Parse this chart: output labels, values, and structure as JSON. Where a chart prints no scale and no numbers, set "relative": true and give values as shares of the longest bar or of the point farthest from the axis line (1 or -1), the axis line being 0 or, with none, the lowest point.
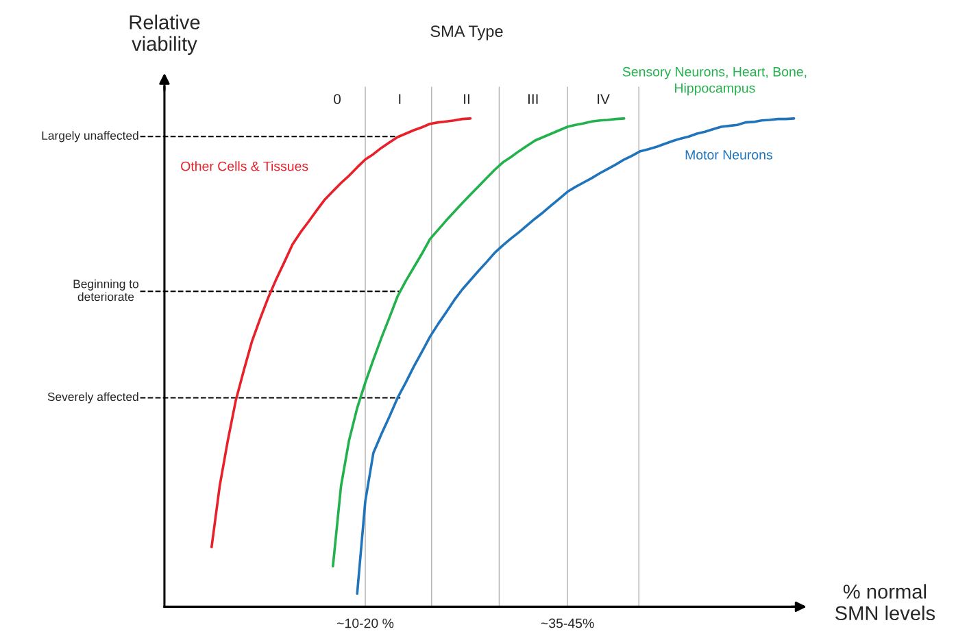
{
  "chart_data": {
    "type": "line",
    "relative": true,
    "xlabel": "% normal\nSMN levels",
    "ylabel": "Relative\nviability",
    "categories": [
      null,
      null,
      null,
      null,
      null,
      null,
      null,
      null,
      null,
      null,
      null,
      null,
      null,
      null,
      null,
      null,
      null,
      null,
      null,
      null,
      null,
      null,
      null,
      null,
      "~10-20 %",
      null,
      null,
      null,
      null,
      null,
      null,
      null,
      null,
      null,
      null,
      null,
      null,
      null,
      null,
      null,
      null,
      null,
      null,
      null,
      null,
      null,
      null,
      null,
      null,
      "~35-45%",
      null,
      null,
      null,
      null,
      null,
      null,
      null,
      null,
      null,
      null,
      null,
      null,
      null,
      null,
      null,
      null,
      null,
      null,
      null,
      null,
      null,
      null,
      null,
      null,
      null,
      null,
      null,
      null,
      null
    ],
    "grid": "x",
    "legend": false,
    "marker": "none",
    "line_style": "solid",
    "series": [
      {
        "name": "Other Cells & Tissues",
        "color": "#e8202a",
        "values": [
          null,
          null,
          null,
          null,
          null,
          0.122,
          0.247,
          0.34,
          0.423,
          0.485,
          0.544,
          0.59,
          0.633,
          0.671,
          0.706,
          0.742,
          0.767,
          0.789,
          0.812,
          0.834,
          0.851,
          0.868,
          0.883,
          0.9,
          0.916,
          0.927,
          0.94,
          0.951,
          0.962,
          0.969,
          0.976,
          0.982,
          0.989,
          0.992,
          0.994,
          0.996,
          0.999,
          1.0,
          null,
          null,
          null,
          null,
          null,
          null,
          null,
          null,
          null,
          null,
          null,
          null,
          null,
          null,
          null,
          null,
          null,
          null,
          null,
          null,
          null,
          null,
          null,
          null,
          null,
          null,
          null,
          null,
          null,
          null,
          null,
          null,
          null,
          null,
          null,
          null,
          null,
          null,
          null,
          null,
          null
        ]
      },
      {
        "name": "Sensory Neurons, Heart, Bone,\nHippocampus",
        "color": "#22b14c",
        "values": [
          null,
          null,
          null,
          null,
          null,
          null,
          null,
          null,
          null,
          null,
          null,
          null,
          null,
          null,
          null,
          null,
          null,
          null,
          null,
          null,
          0.083,
          0.247,
          0.341,
          0.407,
          0.459,
          0.506,
          0.551,
          0.593,
          0.636,
          0.667,
          0.695,
          0.723,
          0.753,
          0.772,
          0.791,
          0.809,
          0.827,
          0.844,
          0.861,
          0.878,
          0.895,
          0.91,
          0.921,
          0.933,
          0.944,
          0.955,
          0.962,
          0.969,
          0.976,
          0.983,
          0.987,
          0.99,
          0.994,
          0.996,
          0.997,
          0.999,
          1.0,
          null,
          null,
          null,
          null,
          null,
          null,
          null,
          null,
          null,
          null,
          null,
          null,
          null,
          null,
          null,
          null,
          null,
          null,
          null,
          null,
          null,
          null
        ]
      },
      {
        "name": "Motor Neurons",
        "color": "#1f74bb",
        "values": [
          null,
          null,
          null,
          null,
          null,
          null,
          null,
          null,
          null,
          null,
          null,
          null,
          null,
          null,
          null,
          null,
          null,
          null,
          null,
          null,
          null,
          null,
          null,
          0.027,
          0.216,
          0.315,
          0.354,
          0.39,
          0.428,
          0.459,
          0.492,
          0.522,
          0.553,
          0.579,
          0.603,
          0.628,
          0.65,
          0.669,
          0.688,
          0.706,
          0.725,
          0.74,
          0.754,
          0.767,
          0.781,
          0.795,
          0.808,
          0.822,
          0.836,
          0.85,
          0.86,
          0.869,
          0.878,
          0.888,
          0.897,
          0.906,
          0.916,
          0.924,
          0.933,
          0.937,
          0.942,
          0.948,
          0.954,
          0.959,
          0.963,
          0.969,
          0.973,
          0.978,
          0.983,
          0.985,
          0.987,
          0.992,
          0.993,
          0.996,
          0.997,
          0.999,
          0.999,
          1.0,
          null
        ]
      }
    ],
    "ref_lines": [
      {
        "axis": "y",
        "value": 0.963,
        "label": "Largely unaffected",
        "color": "#000000",
        "line_style": "dashed"
      },
      {
        "axis": "y",
        "value": 0.646,
        "label": "Beginning to\ndeteriorate",
        "color": "#000000",
        "line_style": "dashed"
      },
      {
        "axis": "y",
        "value": 0.428,
        "label": "Severely affected",
        "color": "#000000",
        "line_style": "dashed"
      }
    ],
    "annotations": [
      "SMA Type",
      "0",
      "I",
      "II",
      "III",
      "IV"
    ]
  }
}
